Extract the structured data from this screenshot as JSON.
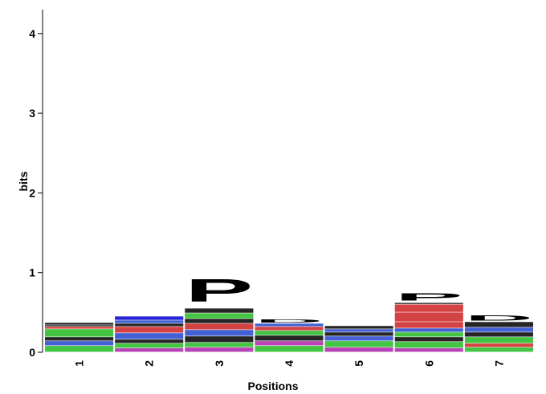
{
  "chart_data": {
    "type": "logo",
    "xlabel": "Positions",
    "ylabel": "bits",
    "categories": [
      "1",
      "2",
      "3",
      "4",
      "5",
      "6",
      "7"
    ],
    "ylim": [
      0,
      4.3
    ],
    "yticks": [
      0,
      1,
      2,
      3,
      4
    ],
    "stacks": [
      [
        {
          "color": "#22bb22",
          "height": 0.08
        },
        {
          "color": "#2244cc",
          "height": 0.06
        },
        {
          "color": "#000000",
          "height": 0.05
        },
        {
          "color": "#22bb22",
          "height": 0.1
        },
        {
          "color": "#cc2222",
          "height": 0.03
        },
        {
          "color": "#000000",
          "height": 0.02
        },
        {
          "color": "#000000",
          "height": 0.03
        }
      ],
      [
        {
          "color": "#aa22aa",
          "height": 0.05
        },
        {
          "color": "#22bb22",
          "height": 0.06
        },
        {
          "color": "#000000",
          "height": 0.05
        },
        {
          "color": "#2244cc",
          "height": 0.08
        },
        {
          "color": "#cc2222",
          "height": 0.08
        },
        {
          "color": "#000000",
          "height": 0.04
        },
        {
          "color": "#2244cc",
          "height": 0.04
        },
        {
          "color": "#0000cc",
          "height": 0.05
        }
      ],
      [
        {
          "color": "#aa22aa",
          "height": 0.06
        },
        {
          "color": "#22bb22",
          "height": 0.06
        },
        {
          "color": "#000000",
          "height": 0.08
        },
        {
          "color": "#2244cc",
          "height": 0.08
        },
        {
          "color": "#cc2222",
          "height": 0.08
        },
        {
          "color": "#000000",
          "height": 0.06
        },
        {
          "color": "#22bb22",
          "height": 0.07
        },
        {
          "color": "#000000",
          "height": 0.06
        },
        {
          "color": "#000000",
          "height": 0.45,
          "letter": "P"
        }
      ],
      [
        {
          "color": "#22bb22",
          "height": 0.08
        },
        {
          "color": "#aa22aa",
          "height": 0.06
        },
        {
          "color": "#000000",
          "height": 0.07
        },
        {
          "color": "#22bb22",
          "height": 0.06
        },
        {
          "color": "#cc2222",
          "height": 0.05
        },
        {
          "color": "#2244cc",
          "height": 0.04
        },
        {
          "color": "#000000",
          "height": 0.06,
          "letter": "D"
        }
      ],
      [
        {
          "color": "#aa22aa",
          "height": 0.06
        },
        {
          "color": "#22bb22",
          "height": 0.08
        },
        {
          "color": "#2244cc",
          "height": 0.06
        },
        {
          "color": "#000000",
          "height": 0.05
        },
        {
          "color": "#2244cc",
          "height": 0.04
        },
        {
          "color": "#000000",
          "height": 0.04
        }
      ],
      [
        {
          "color": "#aa22aa",
          "height": 0.05
        },
        {
          "color": "#22bb22",
          "height": 0.08
        },
        {
          "color": "#000000",
          "height": 0.06
        },
        {
          "color": "#22bb22",
          "height": 0.06
        },
        {
          "color": "#2244cc",
          "height": 0.05
        },
        {
          "color": "#cc2222",
          "height": 0.08
        },
        {
          "color": "#cc2222",
          "height": 0.12
        },
        {
          "color": "#cc2222",
          "height": 0.1
        },
        {
          "color": "#000000",
          "height": 0.02
        },
        {
          "color": "#000000",
          "height": 0.15,
          "letter": "P"
        }
      ],
      [
        {
          "color": "#22bb22",
          "height": 0.06
        },
        {
          "color": "#cc2222",
          "height": 0.05
        },
        {
          "color": "#22bb22",
          "height": 0.08
        },
        {
          "color": "#000000",
          "height": 0.06
        },
        {
          "color": "#2244cc",
          "height": 0.06
        },
        {
          "color": "#000000",
          "height": 0.07
        },
        {
          "color": "#000000",
          "height": 0.1,
          "letter": "D"
        }
      ]
    ]
  }
}
